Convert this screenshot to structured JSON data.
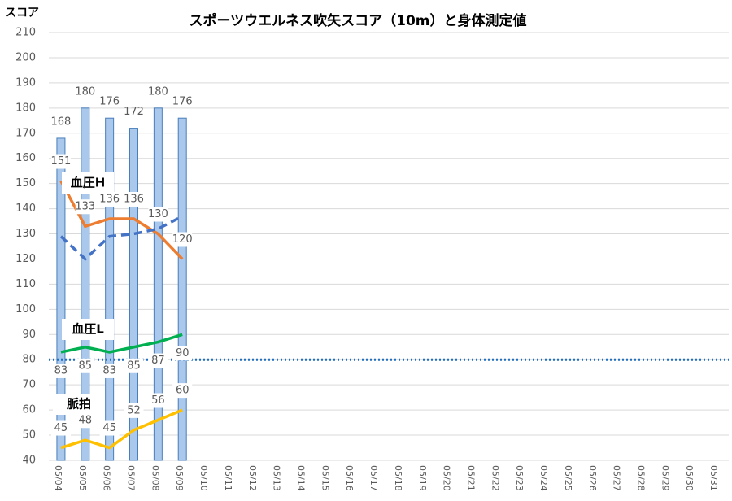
{
  "chart_data": {
    "type": "bar_line",
    "title": "スポーツウエルネス吹矢スコア（10m）と身体測定値",
    "y_label": "スコア",
    "categories": [
      "05/04",
      "05/05",
      "05/06",
      "05/07",
      "05/08",
      "05/09",
      "05/10",
      "05/11",
      "05/12",
      "05/13",
      "05/14",
      "05/15",
      "05/16",
      "05/17",
      "05/18",
      "05/19",
      "05/20",
      "05/21",
      "05/22",
      "05/23",
      "05/24",
      "05/25",
      "05/26",
      "05/27",
      "05/28",
      "05/29",
      "05/30",
      "05/31"
    ],
    "bars": {
      "color": "#a9c8ec",
      "edge": "#4a7ebb",
      "values": [
        168,
        180,
        176,
        172,
        180,
        176,
        null,
        null,
        null,
        null,
        null,
        null,
        null,
        null,
        null,
        null,
        null,
        null,
        null,
        null,
        null,
        null,
        null,
        null,
        null,
        null,
        null,
        null
      ]
    },
    "series": [
      {
        "name": "血圧H",
        "color": "#ed7d31",
        "label_pos": "above",
        "values": [
          151,
          133,
          136,
          136,
          130,
          120,
          null,
          null,
          null,
          null,
          null,
          null,
          null,
          null,
          null,
          null,
          null,
          null,
          null,
          null,
          null,
          null,
          null,
          null,
          null,
          null,
          null,
          null
        ]
      },
      {
        "color": "#4472c4",
        "dashed": true,
        "values": [
          129,
          120,
          129,
          130,
          132,
          137,
          null,
          null,
          null,
          null,
          null,
          null,
          null,
          null,
          null,
          null,
          null,
          null,
          null,
          null,
          null,
          null,
          null,
          null,
          null,
          null,
          null,
          null
        ]
      },
      {
        "name": "血圧L",
        "color": "#00b050",
        "label_pos": "below",
        "values": [
          83,
          85,
          83,
          85,
          87,
          90,
          null,
          null,
          null,
          null,
          null,
          null,
          null,
          null,
          null,
          null,
          null,
          null,
          null,
          null,
          null,
          null,
          null,
          null,
          null,
          null,
          null,
          null
        ]
      },
      {
        "name": "脈拍",
        "color": "#ffc000",
        "label_pos": "above",
        "values": [
          45,
          48,
          45,
          52,
          56,
          60,
          null,
          null,
          null,
          null,
          null,
          null,
          null,
          null,
          null,
          null,
          null,
          null,
          null,
          null,
          null,
          null,
          null,
          null,
          null,
          null,
          null,
          null
        ]
      }
    ],
    "reference_line": {
      "value": 80,
      "color": "#1f6fbf"
    },
    "ylim": [
      40,
      210
    ],
    "yticks": [
      40,
      50,
      60,
      70,
      80,
      90,
      100,
      110,
      120,
      130,
      140,
      150,
      160,
      170,
      180,
      190,
      200,
      210
    ],
    "grid": true
  }
}
